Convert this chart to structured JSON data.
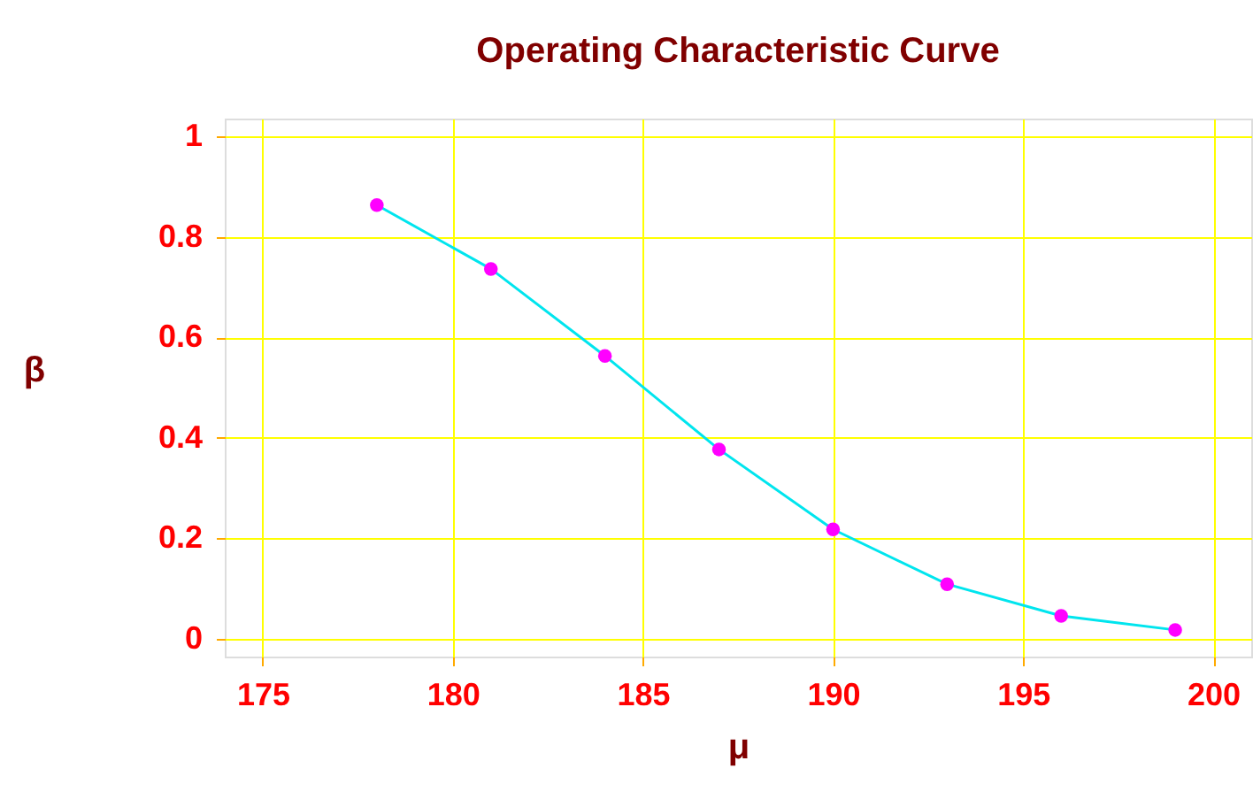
{
  "chart_data": {
    "type": "line",
    "title": "Operating Characteristic Curve",
    "xlabel": "μ",
    "ylabel": "β",
    "x": [
      178,
      181,
      184,
      187,
      190,
      193,
      196,
      199
    ],
    "series": [
      {
        "color": "#00e5ee",
        "values": [
          0.863,
          0.736,
          0.563,
          0.377,
          0.218,
          0.109,
          0.046,
          0.018
        ]
      },
      {
        "type": "scatter",
        "color": "#ff00ff",
        "values": [
          0.863,
          0.736,
          0.563,
          0.377,
          0.218,
          0.109,
          0.046,
          0.018
        ]
      }
    ],
    "line_style": "solid",
    "xlim": [
      174,
      201
    ],
    "xticks": [
      175,
      180,
      185,
      190,
      195,
      200
    ],
    "ylim": [
      -0.035,
      1.035
    ],
    "yticks": [
      {
        "value": 0,
        "label": "0"
      },
      0.2,
      0.4,
      0.6,
      0.8,
      {
        "value": 1,
        "label": "1"
      }
    ],
    "grid": true
  }
}
